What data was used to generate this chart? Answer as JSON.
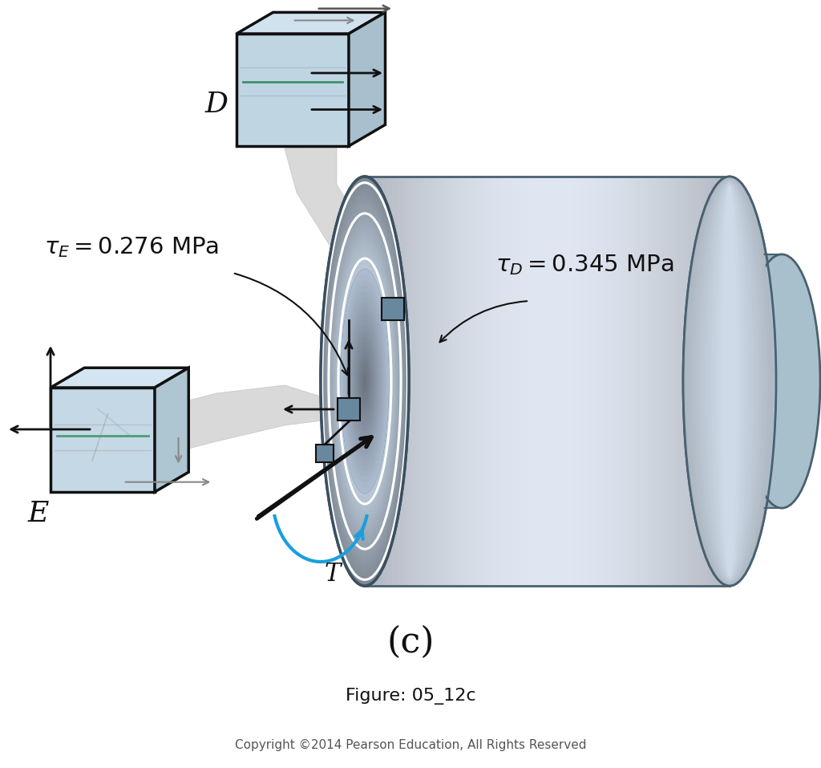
{
  "figure_label": "(c)",
  "figure_id": "Figure: 05_12c",
  "copyright": "Copyright ©2014 Pearson Education, All Rights Reserved",
  "label_D": "D",
  "label_E": "E",
  "label_T": "T",
  "bg_color": "#ffffff",
  "torque_arrow_color": "#1a9fdc",
  "cube_edge_color": "#111111"
}
